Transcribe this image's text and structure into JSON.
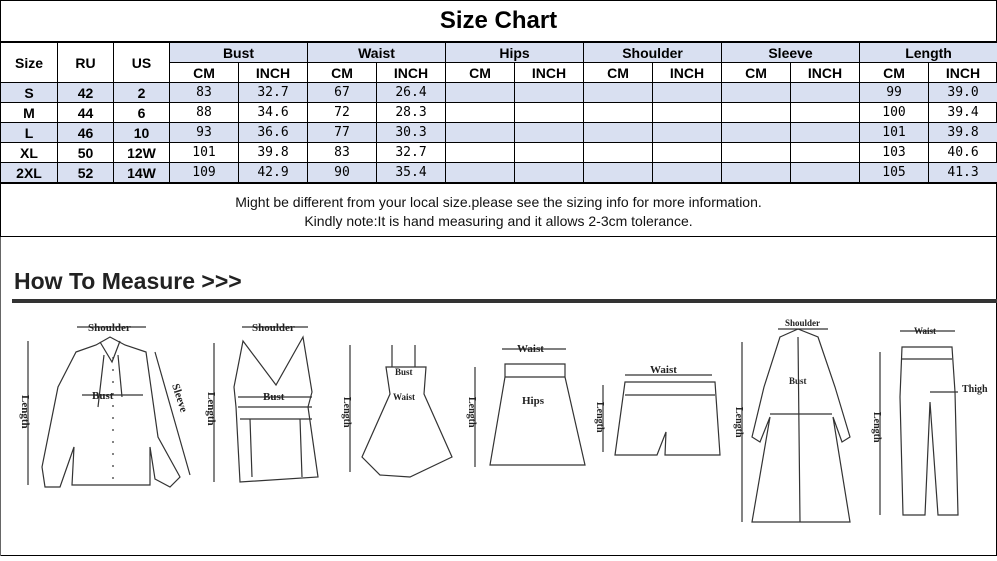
{
  "title": "Size Chart",
  "table": {
    "fixed_headers": [
      "Size",
      "RU",
      "US"
    ],
    "groups": [
      "Bust",
      "Waist",
      "Hips",
      "Shoulder",
      "Sleeve",
      "Length"
    ],
    "units": [
      "CM",
      "INCH"
    ],
    "rows": [
      [
        "S",
        "42",
        "2",
        "83",
        "32.7",
        "67",
        "26.4",
        "",
        "",
        "",
        "",
        "",
        "",
        "99",
        "39.0"
      ],
      [
        "M",
        "44",
        "6",
        "88",
        "34.6",
        "72",
        "28.3",
        "",
        "",
        "",
        "",
        "",
        "",
        "100",
        "39.4"
      ],
      [
        "L",
        "46",
        "10",
        "93",
        "36.6",
        "77",
        "30.3",
        "",
        "",
        "",
        "",
        "",
        "",
        "101",
        "39.8"
      ],
      [
        "XL",
        "50",
        "12W",
        "101",
        "39.8",
        "83",
        "32.7",
        "",
        "",
        "",
        "",
        "",
        "",
        "103",
        "40.6"
      ],
      [
        "2XL",
        "52",
        "14W",
        "109",
        "42.9",
        "90",
        "35.4",
        "",
        "",
        "",
        "",
        "",
        "",
        "105",
        "41.3"
      ]
    ],
    "row_color": "#d9e0f1"
  },
  "note": {
    "line1": "Might be different from your local size.please see the sizing info for more information.",
    "line2": "Kindly note:It is hand measuring and it allows 2-3cm tolerance."
  },
  "how_to_measure": {
    "heading": "How To Measure >>>",
    "labels": {
      "shoulder": "Shoulder",
      "bust": "Bust",
      "length": "Length",
      "sleeve": "Sleeve",
      "waist": "Waist",
      "hips": "Hips",
      "thigh": "Thigh"
    }
  }
}
